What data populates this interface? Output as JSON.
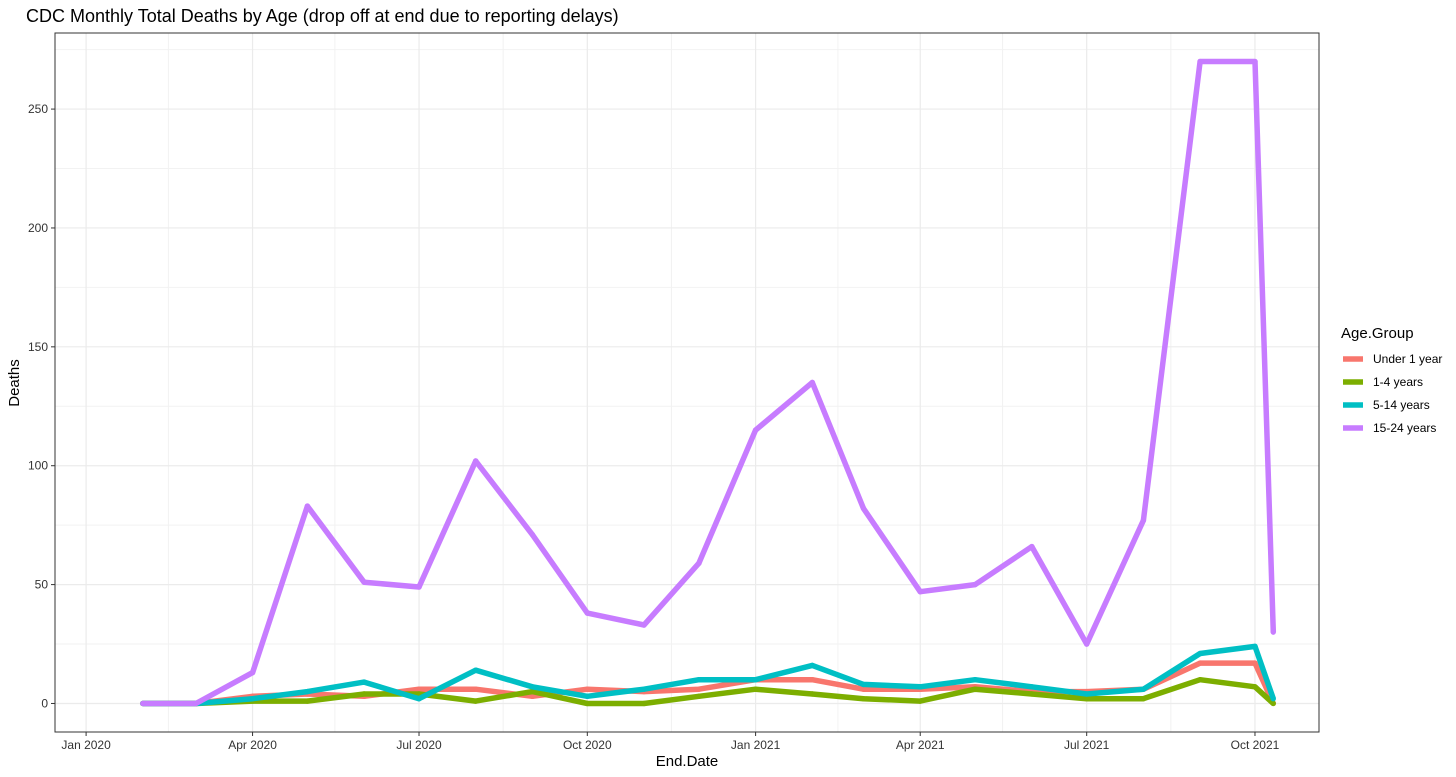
{
  "chart_data": {
    "type": "line",
    "title": "CDC Monthly Total Deaths by Age (drop off at end due to reporting delays)",
    "xlabel": "End.Date",
    "ylabel": "Deaths",
    "xlim": [
      "2019-12-15",
      "2021-11-05"
    ],
    "ylim": [
      -12,
      282
    ],
    "grid": true,
    "legend_position": "right",
    "legend_title": "Age.Group",
    "x_ticks": [
      {
        "date": "2020-01-01",
        "label": "Jan 2020"
      },
      {
        "date": "2020-04-01",
        "label": "Apr 2020"
      },
      {
        "date": "2020-07-01",
        "label": "Jul 2020"
      },
      {
        "date": "2020-10-01",
        "label": "Oct 2020"
      },
      {
        "date": "2021-01-01",
        "label": "Jan 2021"
      },
      {
        "date": "2021-04-01",
        "label": "Apr 2021"
      },
      {
        "date": "2021-07-01",
        "label": "Jul 2021"
      },
      {
        "date": "2021-10-01",
        "label": "Oct 2021"
      }
    ],
    "x_minor_ticks": [
      "2020-02-15",
      "2020-05-16",
      "2020-08-16",
      "2020-11-16",
      "2021-02-15",
      "2021-05-16",
      "2021-08-16"
    ],
    "y_ticks": [
      0,
      50,
      100,
      150,
      200,
      250
    ],
    "y_minor_ticks": [
      25,
      75,
      125,
      175,
      225,
      275
    ],
    "x": [
      "2020-02-01",
      "2020-03-01",
      "2020-04-01",
      "2020-05-01",
      "2020-06-01",
      "2020-07-01",
      "2020-08-01",
      "2020-09-01",
      "2020-10-01",
      "2020-11-01",
      "2020-12-01",
      "2021-01-01",
      "2021-02-01",
      "2021-03-01",
      "2021-04-01",
      "2021-05-01",
      "2021-06-01",
      "2021-07-01",
      "2021-08-01",
      "2021-09-01",
      "2021-10-01",
      "2021-10-11"
    ],
    "series": [
      {
        "name": "Under 1 year",
        "color": "#F8766D",
        "values": [
          0,
          0,
          3,
          4,
          3,
          6,
          6,
          3,
          6,
          5,
          6,
          10,
          10,
          6,
          6,
          7,
          5,
          5,
          6,
          17,
          17,
          0
        ]
      },
      {
        "name": "1-4 years",
        "color": "#7CAE00",
        "values": [
          0,
          0,
          1,
          1,
          4,
          4,
          1,
          5,
          0,
          0,
          3,
          6,
          4,
          2,
          1,
          6,
          4,
          2,
          2,
          10,
          7,
          0
        ]
      },
      {
        "name": "5-14 years",
        "color": "#00BFC4",
        "values": [
          0,
          0,
          2,
          5,
          9,
          2,
          14,
          7,
          3,
          6,
          10,
          10,
          16,
          8,
          7,
          10,
          7,
          4,
          6,
          21,
          24,
          2
        ]
      },
      {
        "name": "15-24 years",
        "color": "#C77CFF",
        "values": [
          0,
          0,
          13,
          83,
          51,
          49,
          102,
          71,
          38,
          33,
          59,
          115,
          135,
          82,
          47,
          50,
          66,
          25,
          77,
          270,
          270,
          30
        ]
      }
    ]
  }
}
